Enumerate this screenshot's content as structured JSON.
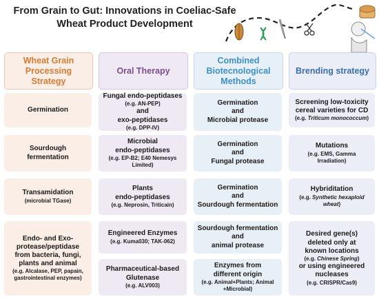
{
  "title": "From Grain to Gut: Innovations in Coeliac-Safe Wheat Product Development",
  "columns": [
    {
      "header": "Wheat Grain Processing Strategy",
      "cells": [
        {
          "main": "Germination",
          "sub": ""
        },
        {
          "main": "Sourdough fermentation",
          "sub": ""
        },
        {
          "main": "Transamidation",
          "sub": "(microbial TGase)"
        },
        {
          "main": "Endo- and Exo-protease/peptidase from bacteria, fungi, plants and animal",
          "sub": "(e.g. Alcalase, PEP, papain, gastrointestinal enzymes)"
        }
      ]
    },
    {
      "header": "Oral Therapy",
      "cells": [
        {
          "lines": [
            "Fungal endo-peptidases",
            "(e.g. AN-PEP)",
            "and",
            "exo-peptidases",
            "(e.g. DPP-IV)"
          ]
        },
        {
          "lines": [
            "Microbial",
            "endo-peptidases",
            "(e.g. EP-B2; E40 Nemesys Limited)"
          ]
        },
        {
          "lines": [
            "Plants",
            "endo-peptidases",
            "(e.g. Neprosin, Triticain)"
          ]
        },
        {
          "lines": [
            "Engineered Enzymes",
            "(e.g. Kuma030; TAK-062)"
          ]
        },
        {
          "lines": [
            "Pharmaceutical-based Glutenase",
            "(e.g. ALV003)"
          ]
        }
      ]
    },
    {
      "header": "Combined Biotecnological Methods",
      "cells": [
        {
          "lines": [
            "Germination",
            "and",
            "Microbial protease"
          ]
        },
        {
          "lines": [
            "Germination",
            "and",
            "Fungal protease"
          ]
        },
        {
          "lines": [
            "Germination",
            "and",
            "Sourdough fermentation"
          ]
        },
        {
          "lines": [
            "Sourdough fermentation",
            "and",
            "animal protease"
          ]
        },
        {
          "lines": [
            "Enzymes from different origin",
            "(e.g. Animal+Plants; Animal +Microbial)"
          ]
        }
      ]
    },
    {
      "header": "Brending strategy",
      "cells": [
        {
          "lines": [
            "Screening low-toxicity cereal varieties for CD",
            "(e.g. Triticum monococcum)"
          ]
        },
        {
          "lines": [
            "Mutations",
            "(e.g. EMS, Gamma Irradiation)"
          ]
        },
        {
          "lines": [
            "Hybriditation",
            "(e.g. Synthetic hexaploid wheat)"
          ]
        },
        {
          "lines": [
            "Desired gene(s) deleted only at known locations",
            "(e.g. Chinese Spring)",
            "or using engineered nucleases",
            "(e.g. CRISPR/Cas9)"
          ]
        }
      ]
    }
  ]
}
